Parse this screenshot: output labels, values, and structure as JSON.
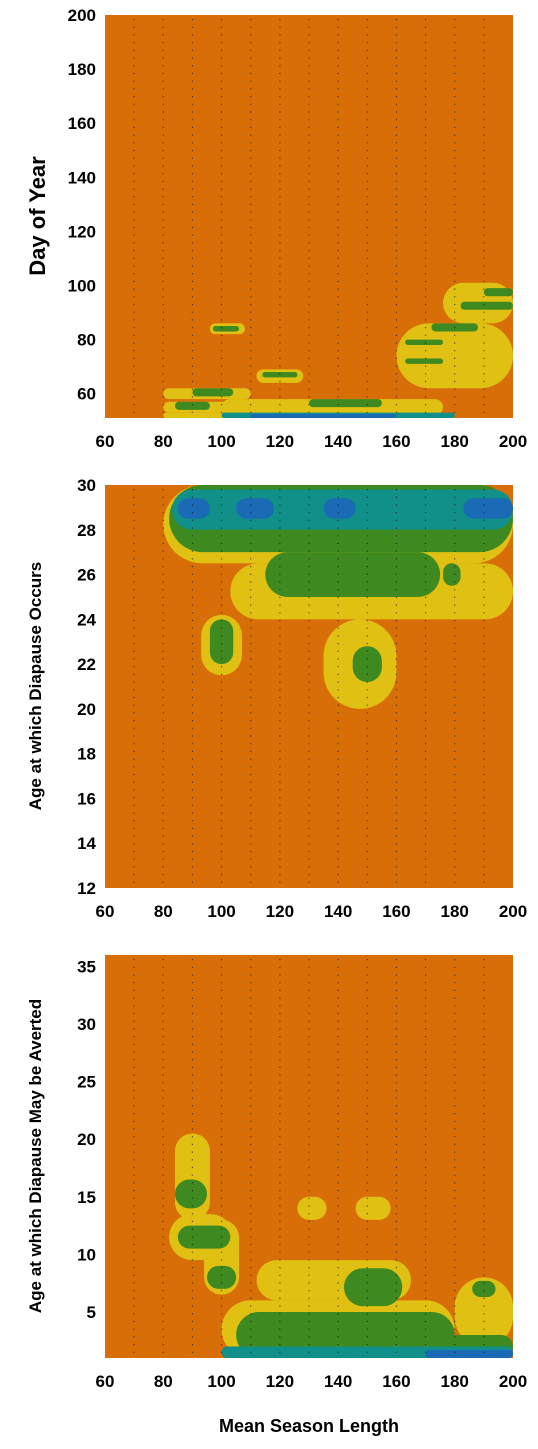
{
  "colors": {
    "background": "#d86e08",
    "low": "#e0c012",
    "mid": "#3e8a20",
    "high": "#109088",
    "peak": "#1a6ab6"
  },
  "xlabel": "Mean Season Length",
  "chart_data": [
    {
      "type": "heatmap",
      "name": "panel-1",
      "ylabel": "Day of Year",
      "xlim": [
        60,
        200
      ],
      "ylim": [
        51,
        200
      ],
      "xticks": [
        60,
        80,
        100,
        120,
        140,
        160,
        180,
        200
      ],
      "yticks": [
        60,
        80,
        100,
        120,
        140,
        160,
        180,
        200
      ],
      "grid": true,
      "regions": [
        {
          "level": "low",
          "x": [
            80,
            110
          ],
          "y": [
            51,
            53
          ]
        },
        {
          "level": "low",
          "x": [
            80,
            150
          ],
          "y": [
            53,
            57
          ]
        },
        {
          "level": "low",
          "x": [
            100,
            176
          ],
          "y": [
            52,
            58
          ]
        },
        {
          "level": "low",
          "x": [
            80,
            110
          ],
          "y": [
            58,
            62
          ]
        },
        {
          "level": "low",
          "x": [
            96,
            108
          ],
          "y": [
            82,
            86
          ]
        },
        {
          "level": "low",
          "x": [
            112,
            128
          ],
          "y": [
            64,
            69
          ]
        },
        {
          "level": "low",
          "x": [
            160,
            200
          ],
          "y": [
            62,
            86
          ]
        },
        {
          "level": "low",
          "x": [
            176,
            200
          ],
          "y": [
            86,
            101
          ]
        },
        {
          "level": "mid",
          "x": [
            84,
            96
          ],
          "y": [
            54,
            57
          ]
        },
        {
          "level": "mid",
          "x": [
            90,
            104
          ],
          "y": [
            59,
            62
          ]
        },
        {
          "level": "mid",
          "x": [
            97,
            106
          ],
          "y": [
            83,
            85
          ]
        },
        {
          "level": "mid",
          "x": [
            114,
            126
          ],
          "y": [
            66,
            68
          ]
        },
        {
          "level": "mid",
          "x": [
            130,
            155
          ],
          "y": [
            55,
            58
          ]
        },
        {
          "level": "mid",
          "x": [
            163,
            176
          ],
          "y": [
            71,
            73
          ]
        },
        {
          "level": "mid",
          "x": [
            163,
            176
          ],
          "y": [
            78,
            80
          ]
        },
        {
          "level": "mid",
          "x": [
            172,
            188
          ],
          "y": [
            83,
            86
          ]
        },
        {
          "level": "mid",
          "x": [
            182,
            200
          ],
          "y": [
            91,
            94
          ]
        },
        {
          "level": "mid",
          "x": [
            190,
            200
          ],
          "y": [
            96,
            99
          ]
        },
        {
          "level": "high",
          "x": [
            100,
            180
          ],
          "y": [
            51,
            53
          ]
        },
        {
          "level": "peak",
          "x": [
            110,
            160
          ],
          "y": [
            51,
            52.5
          ]
        }
      ]
    },
    {
      "type": "heatmap",
      "name": "panel-2",
      "ylabel": "Age at which Diapause Occurs",
      "xlim": [
        60,
        200
      ],
      "ylim": [
        12,
        30
      ],
      "xticks": [
        60,
        80,
        100,
        120,
        140,
        160,
        180,
        200
      ],
      "yticks": [
        12,
        14,
        16,
        18,
        20,
        22,
        24,
        26,
        28,
        30
      ],
      "grid": true,
      "regions": [
        {
          "level": "low",
          "x": [
            80,
            200
          ],
          "y": [
            26.5,
            30
          ]
        },
        {
          "level": "low",
          "x": [
            103,
            200
          ],
          "y": [
            24,
            26.5
          ]
        },
        {
          "level": "low",
          "x": [
            135,
            160
          ],
          "y": [
            20,
            24
          ]
        },
        {
          "level": "low",
          "x": [
            93,
            107
          ],
          "y": [
            21.5,
            24.2
          ]
        },
        {
          "level": "low",
          "x": [
            143,
            158
          ],
          "y": [
            20.5,
            23.8
          ]
        },
        {
          "level": "mid",
          "x": [
            82,
            200
          ],
          "y": [
            27,
            30
          ]
        },
        {
          "level": "mid",
          "x": [
            115,
            175
          ],
          "y": [
            25,
            27
          ]
        },
        {
          "level": "mid",
          "x": [
            96,
            104
          ],
          "y": [
            22,
            24
          ]
        },
        {
          "level": "mid",
          "x": [
            145,
            155
          ],
          "y": [
            21.2,
            22.8
          ]
        },
        {
          "level": "mid",
          "x": [
            176,
            182
          ],
          "y": [
            25.5,
            26.5
          ]
        },
        {
          "level": "high",
          "x": [
            83,
            200
          ],
          "y": [
            28,
            29.8
          ]
        },
        {
          "level": "peak",
          "x": [
            85,
            96
          ],
          "y": [
            28.5,
            29.4
          ]
        },
        {
          "level": "peak",
          "x": [
            105,
            118
          ],
          "y": [
            28.5,
            29.4
          ]
        },
        {
          "level": "peak",
          "x": [
            135,
            146
          ],
          "y": [
            28.5,
            29.4
          ]
        },
        {
          "level": "peak",
          "x": [
            183,
            200
          ],
          "y": [
            28.5,
            29.4
          ]
        }
      ]
    },
    {
      "type": "heatmap",
      "name": "panel-3",
      "ylabel": "Age at which Diapause May be Averted",
      "xlim": [
        60,
        200
      ],
      "ylim": [
        1,
        36
      ],
      "xticks": [
        60,
        80,
        100,
        120,
        140,
        160,
        180,
        200
      ],
      "yticks": [
        5,
        10,
        15,
        20,
        25,
        30,
        35
      ],
      "grid": true,
      "regions": [
        {
          "level": "low",
          "x": [
            84,
            96
          ],
          "y": [
            13,
            20.5
          ]
        },
        {
          "level": "low",
          "x": [
            82,
            104
          ],
          "y": [
            9.5,
            13.5
          ]
        },
        {
          "level": "low",
          "x": [
            94,
            106
          ],
          "y": [
            6.5,
            13
          ]
        },
        {
          "level": "low",
          "x": [
            100,
            180
          ],
          "y": [
            1,
            6
          ]
        },
        {
          "level": "low",
          "x": [
            112,
            165
          ],
          "y": [
            6,
            9.5
          ]
        },
        {
          "level": "low",
          "x": [
            126,
            136
          ],
          "y": [
            13,
            15
          ]
        },
        {
          "level": "low",
          "x": [
            146,
            158
          ],
          "y": [
            13,
            15
          ]
        },
        {
          "level": "low",
          "x": [
            180,
            200
          ],
          "y": [
            2,
            8
          ]
        },
        {
          "level": "mid",
          "x": [
            84,
            95
          ],
          "y": [
            14,
            16.5
          ]
        },
        {
          "level": "mid",
          "x": [
            85,
            103
          ],
          "y": [
            10.5,
            12.5
          ]
        },
        {
          "level": "mid",
          "x": [
            95,
            105
          ],
          "y": [
            7,
            9
          ]
        },
        {
          "level": "mid",
          "x": [
            105,
            180
          ],
          "y": [
            1,
            5
          ]
        },
        {
          "level": "mid",
          "x": [
            142,
            162
          ],
          "y": [
            5.5,
            8.8
          ]
        },
        {
          "level": "mid",
          "x": [
            186,
            194
          ],
          "y": [
            6.3,
            7.7
          ]
        },
        {
          "level": "mid",
          "x": [
            175,
            200
          ],
          "y": [
            1,
            3
          ]
        },
        {
          "level": "high",
          "x": [
            100,
            200
          ],
          "y": [
            1,
            2
          ]
        },
        {
          "level": "peak",
          "x": [
            170,
            200
          ],
          "y": [
            1,
            1.7
          ]
        }
      ]
    }
  ]
}
